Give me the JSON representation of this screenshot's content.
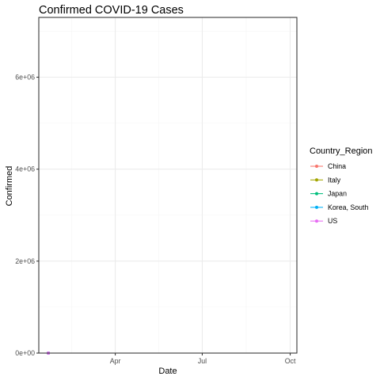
{
  "chart_data": {
    "type": "line",
    "title": "Confirmed COVID-19 Cases",
    "xlabel": "Date",
    "ylabel": "Confirmed",
    "x_ticks": [
      "Apr",
      "Jul",
      "Oct"
    ],
    "y_ticks": [
      "0e+00",
      "2e+06",
      "4e+06",
      "6e+06"
    ],
    "ylim": [
      0,
      7300000
    ],
    "xlim": [
      "2020-01-12",
      "2020-10-08"
    ],
    "x_tick_dates": [
      "2020-04-01",
      "2020-07-01",
      "2020-10-01"
    ],
    "y_tick_values": [
      0,
      2000000,
      4000000,
      6000000
    ],
    "grid": true,
    "legend": {
      "title": "Country_Region",
      "position": "right"
    },
    "series": [
      {
        "name": "China",
        "color": "#F8766D",
        "points": [
          {
            "x": "2020-01-22",
            "y": 548
          }
        ]
      },
      {
        "name": "Italy",
        "color": "#A3A500",
        "points": [
          {
            "x": "2020-01-22",
            "y": 0
          }
        ]
      },
      {
        "name": "Japan",
        "color": "#00BF7D",
        "points": [
          {
            "x": "2020-01-22",
            "y": 2
          }
        ]
      },
      {
        "name": "Korea, South",
        "color": "#00B0F6",
        "points": [
          {
            "x": "2020-01-22",
            "y": 1
          }
        ]
      },
      {
        "name": "US",
        "color": "#E76BF3",
        "points": [
          {
            "x": "2020-01-22",
            "y": 1
          }
        ]
      }
    ]
  }
}
